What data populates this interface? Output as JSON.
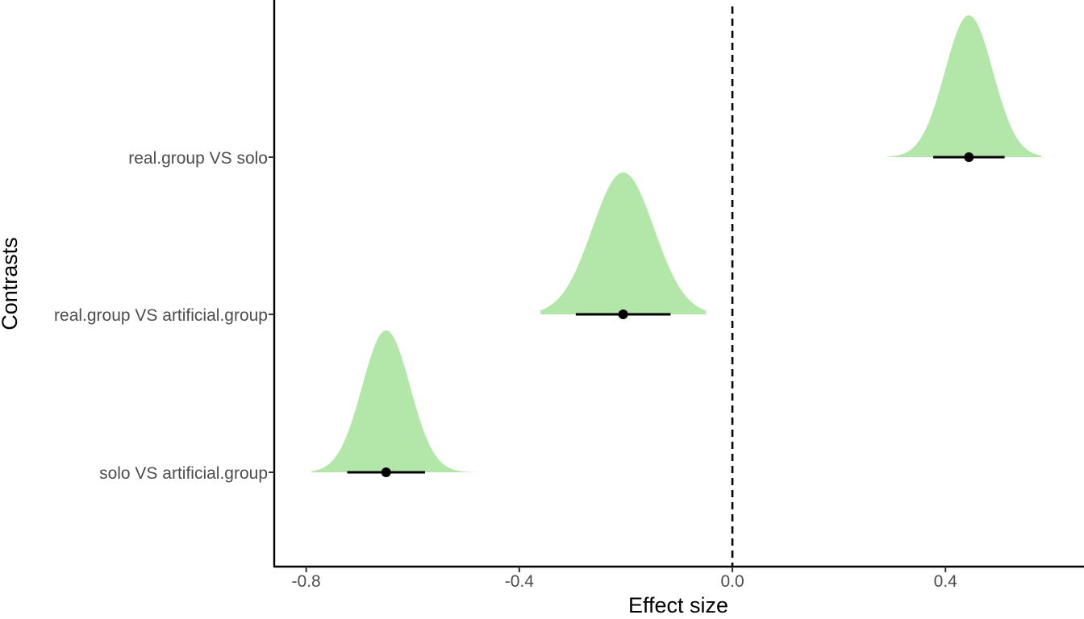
{
  "chart_data": {
    "type": "halfeye",
    "xlabel": "Effect size",
    "ylabel": "Contrasts",
    "xlim": [
      -0.86,
      0.66
    ],
    "x_ticks": [
      -0.8,
      -0.4,
      0.0,
      0.4
    ],
    "x_tick_labels": [
      "-0.8",
      "-0.4",
      "0.0",
      "0.4"
    ],
    "reference_line": {
      "x": 0.0,
      "style": "dashed",
      "color": "#000000"
    },
    "grid": false,
    "fill_color": "#b3e6a9",
    "point_color": "#000000",
    "categories": [
      "real.group VS solo",
      "real.group VS artificial.group",
      "solo VS artificial.group"
    ],
    "series": [
      {
        "category": "real.group VS solo",
        "mean": 0.444,
        "sd": 0.045,
        "interval": [
          0.377,
          0.511
        ],
        "range": [
          0.29,
          0.58
        ]
      },
      {
        "category": "real.group VS artificial.group",
        "mean": -0.205,
        "sd": 0.058,
        "interval": [
          -0.294,
          -0.116
        ],
        "range": [
          -0.36,
          -0.05
        ]
      },
      {
        "category": "solo VS artificial.group",
        "mean": -0.65,
        "sd": 0.045,
        "interval": [
          -0.723,
          -0.577
        ],
        "range": [
          -0.79,
          -0.48
        ]
      }
    ]
  }
}
